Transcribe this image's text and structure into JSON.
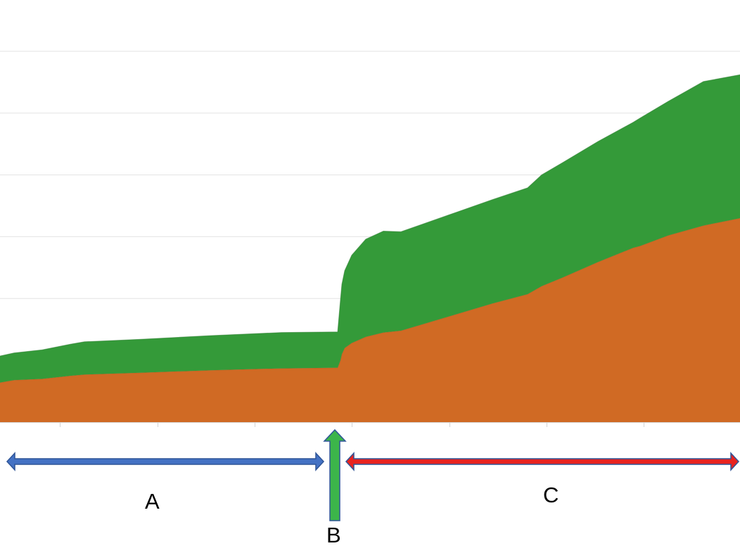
{
  "chart_data": {
    "type": "area",
    "stacked": true,
    "grid": true,
    "x": [
      0,
      20,
      60,
      100,
      120,
      200,
      300,
      400,
      480,
      484,
      486,
      490,
      500,
      520,
      545,
      570,
      600,
      650,
      700,
      750,
      770,
      800,
      850,
      900,
      910,
      950,
      1000,
      1052
    ],
    "series": [
      {
        "color": "#d06a24",
        "values": [
          64,
          68,
          70,
          75,
          77,
          80,
          84,
          87,
          88,
          100,
          110,
          120,
          128,
          138,
          145,
          148,
          158,
          175,
          192,
          207,
          220,
          234,
          259,
          282,
          285,
          302,
          318,
          330
        ]
      },
      {
        "color": "#349a39",
        "values": [
          43,
          44,
          47,
          51,
          53,
          54,
          56,
          58,
          58,
          98,
          113,
          125,
          142,
          158,
          164,
          160,
          162,
          165,
          168,
          172,
          180,
          186,
          195,
          203,
          207,
          217,
          233,
          232
        ]
      }
    ],
    "ylim": [
      0,
      700
    ],
    "yticks": [
      0,
      100,
      200,
      300,
      400,
      500,
      600,
      700
    ],
    "xlim": [
      0,
      1052
    ],
    "xticks": [
      85,
      224,
      362,
      500,
      639,
      777,
      915
    ]
  },
  "annotations": {
    "phase_a": {
      "label": "A",
      "color": "#4472c4",
      "range": [
        10,
        460
      ]
    },
    "phase_b": {
      "label": "B",
      "color": "#3cb54a",
      "at": 476
    },
    "phase_c": {
      "label": "C",
      "color": "#e8231f",
      "range": [
        492,
        1052
      ]
    }
  }
}
